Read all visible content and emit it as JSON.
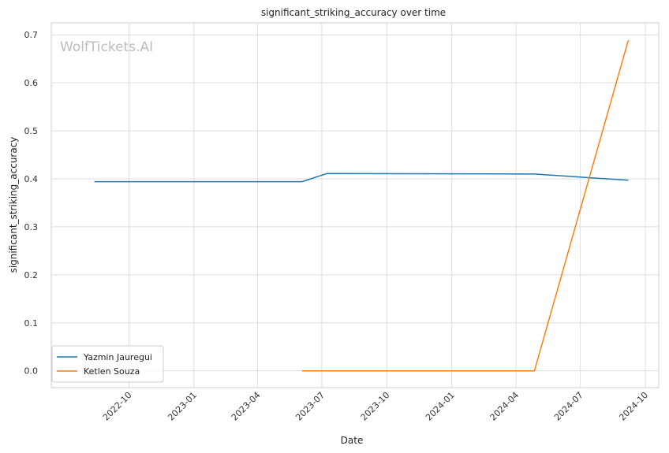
{
  "chart_data": {
    "type": "line",
    "title": "significant_striking_accuracy over time",
    "xlabel": "Date",
    "ylabel": "significant_striking_accuracy",
    "watermark": "WolfTickets.AI",
    "x_ticks": [
      "2022-10",
      "2023-01",
      "2023-04",
      "2023-07",
      "2023-10",
      "2024-01",
      "2024-04",
      "2024-07",
      "2024-10"
    ],
    "y_ticks": [
      "0.0",
      "0.1",
      "0.2",
      "0.3",
      "0.4",
      "0.5",
      "0.6",
      "0.7"
    ],
    "xlim": [
      "2022-06-13",
      "2024-10-20"
    ],
    "ylim": [
      -0.035,
      0.725
    ],
    "grid": true,
    "legend_position": "lower-left",
    "series": [
      {
        "name": "Yazmin Jauregui",
        "color": "#1f77b4",
        "points": [
          {
            "x": "2022-08-13",
            "y": 0.394
          },
          {
            "x": "2023-06-03",
            "y": 0.394
          },
          {
            "x": "2023-07-08",
            "y": 0.411
          },
          {
            "x": "2024-04-27",
            "y": 0.41
          },
          {
            "x": "2024-09-07",
            "y": 0.397
          }
        ]
      },
      {
        "name": "Ketlen Souza",
        "color": "#ff7f0e",
        "points": [
          {
            "x": "2023-06-03",
            "y": 0.0
          },
          {
            "x": "2024-04-27",
            "y": 0.0
          },
          {
            "x": "2024-09-07",
            "y": 0.689
          }
        ]
      }
    ]
  }
}
